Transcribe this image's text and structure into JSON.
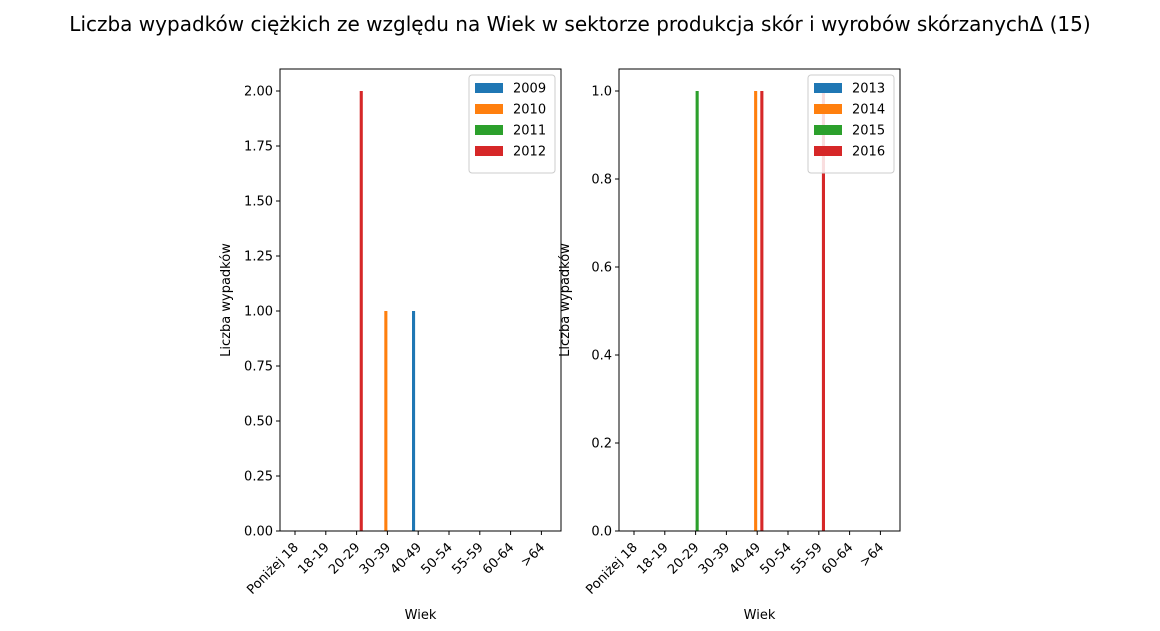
{
  "figure": {
    "title": "Liczba wypadków ciężkich ze względu na Wiek w sektorze produkcja skór i wyrobów skórzanychΔ (15)"
  },
  "chart_data": [
    {
      "type": "bar",
      "xlabel": "Wiek",
      "ylabel": "Liczba wypadków",
      "categories": [
        "Poniżej 18",
        "18-19",
        "20-29",
        "30-39",
        "40-49",
        "50-54",
        "55-59",
        "60-64",
        ">64"
      ],
      "ylim": [
        0,
        2.1
      ],
      "yticks": [
        0.0,
        0.25,
        0.5,
        0.75,
        1.0,
        1.25,
        1.5,
        1.75,
        2.0
      ],
      "ytick_labels": [
        "0.00",
        "0.25",
        "0.50",
        "0.75",
        "1.00",
        "1.25",
        "1.50",
        "1.75",
        "2.00"
      ],
      "legend_position": "top-right",
      "grid": false,
      "series": [
        {
          "name": "2009",
          "color": "#1f77b4",
          "values": [
            0,
            0,
            0,
            0,
            1,
            0,
            0,
            0,
            0
          ]
        },
        {
          "name": "2010",
          "color": "#ff7f0e",
          "values": [
            0,
            0,
            0,
            1,
            0,
            0,
            0,
            0,
            0
          ]
        },
        {
          "name": "2011",
          "color": "#2ca02c",
          "values": [
            0,
            0,
            0,
            0,
            0,
            0,
            0,
            0,
            0
          ]
        },
        {
          "name": "2012",
          "color": "#d62728",
          "values": [
            0,
            0,
            2,
            0,
            0,
            0,
            0,
            0,
            0
          ]
        }
      ]
    },
    {
      "type": "bar",
      "xlabel": "Wiek",
      "ylabel": "Liczba wypadków",
      "categories": [
        "Poniżej 18",
        "18-19",
        "20-29",
        "30-39",
        "40-49",
        "50-54",
        "55-59",
        "60-64",
        ">64"
      ],
      "ylim": [
        0,
        1.05
      ],
      "yticks": [
        0.0,
        0.2,
        0.4,
        0.6,
        0.8,
        1.0
      ],
      "ytick_labels": [
        "0.0",
        "0.2",
        "0.4",
        "0.6",
        "0.8",
        "1.0"
      ],
      "legend_position": "top-right",
      "grid": false,
      "series": [
        {
          "name": "2013",
          "color": "#1f77b4",
          "values": [
            0,
            0,
            0,
            0,
            0,
            0,
            0,
            0,
            0
          ]
        },
        {
          "name": "2014",
          "color": "#ff7f0e",
          "values": [
            0,
            0,
            0,
            0,
            1,
            0,
            0,
            0,
            0
          ]
        },
        {
          "name": "2015",
          "color": "#2ca02c",
          "values": [
            0,
            0,
            1,
            0,
            0,
            0,
            0,
            0,
            0
          ]
        },
        {
          "name": "2016",
          "color": "#d62728",
          "values": [
            0,
            0,
            0,
            0,
            1,
            0,
            1,
            0,
            0
          ]
        }
      ]
    }
  ]
}
